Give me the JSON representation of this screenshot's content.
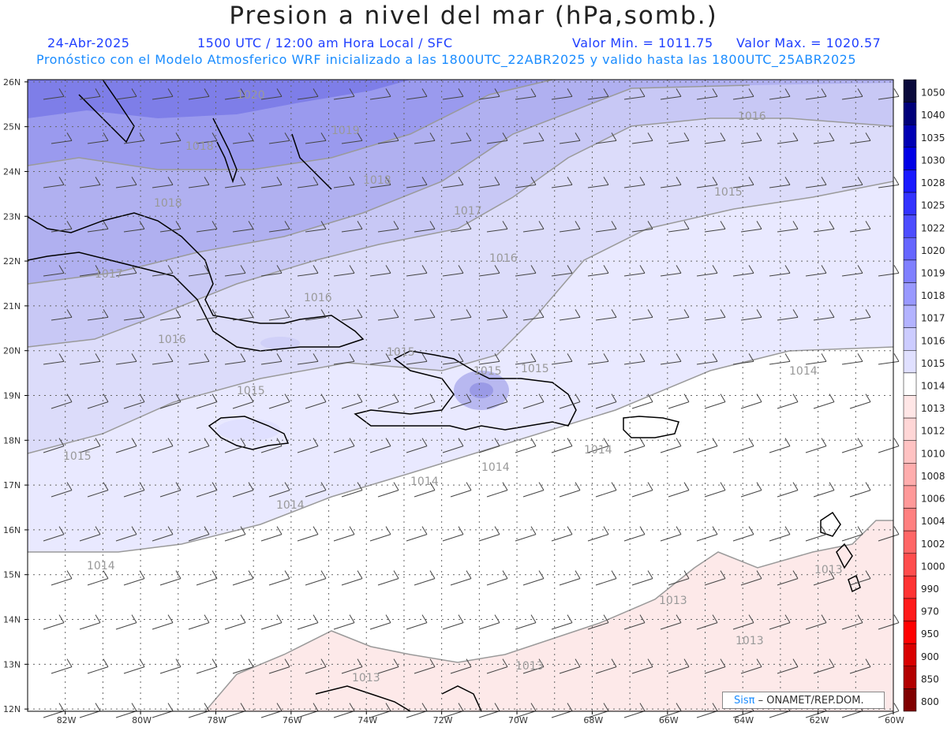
{
  "header": {
    "title": "Presion a nivel del mar (hPa,somb.)",
    "date": "24-Abr-2025",
    "time": "1500 UTC / 12:00 am Hora Local / SFC",
    "min": "Valor Min. = 1011.75",
    "max": "Valor Max. = 1020.57",
    "model": "Pronóstico con el Modelo Atmosferico WRF inicializado a las 1800UTC_22ABR2025 y valido hasta las  1800UTC_25ABR2025"
  },
  "axes": {
    "lat_labels": [
      "26N",
      "25N",
      "24N",
      "23N",
      "22N",
      "21N",
      "20N",
      "19N",
      "18N",
      "17N",
      "16N",
      "15N",
      "14N",
      "13N",
      "12N"
    ],
    "lon_labels": [
      "82W",
      "80W",
      "78W",
      "76W",
      "74W",
      "72W",
      "70W",
      "68W",
      "66W",
      "64W",
      "62W",
      "60W"
    ]
  },
  "colorbar": {
    "levels": [
      "1050",
      "1040",
      "1035",
      "1030",
      "1028",
      "1025",
      "1022",
      "1020",
      "1019",
      "1018",
      "1017",
      "1016",
      "1015",
      "1014",
      "1013",
      "1012",
      "1010",
      "1008",
      "1006",
      "1004",
      "1002",
      "1000",
      "990",
      "970",
      "950",
      "900",
      "850",
      "800"
    ],
    "colors": [
      "#0a0a3c",
      "#00007a",
      "#0000b4",
      "#0000e6",
      "#1a1aff",
      "#3333ff",
      "#4d4dff",
      "#6666ff",
      "#8080ff",
      "#9999ff",
      "#b3b3ff",
      "#ccccff",
      "#e0e0ff",
      "#ffffff",
      "#ffe6e6",
      "#ffd6d6",
      "#ffc2c2",
      "#ffadad",
      "#ff9999",
      "#ff8080",
      "#ff6666",
      "#ff4d4d",
      "#ff3333",
      "#ff1a1a",
      "#ff0000",
      "#d90000",
      "#b30000",
      "#800000"
    ]
  },
  "contour_labels": [
    "1020",
    "1019",
    "1018",
    "1018",
    "1018",
    "1017",
    "1017",
    "1017",
    "1016",
    "1016",
    "1016",
    "1016",
    "1016",
    "1015",
    "1015",
    "1015",
    "1015",
    "1015",
    "1015",
    "1015",
    "1014",
    "1014",
    "1014",
    "1014",
    "1014",
    "1014",
    "1013",
    "1013",
    "1013",
    "1013",
    "1013",
    "1013"
  ],
  "credit": {
    "sis": "Sisπ",
    "text": "– ONAMET/REP.DOM."
  }
}
